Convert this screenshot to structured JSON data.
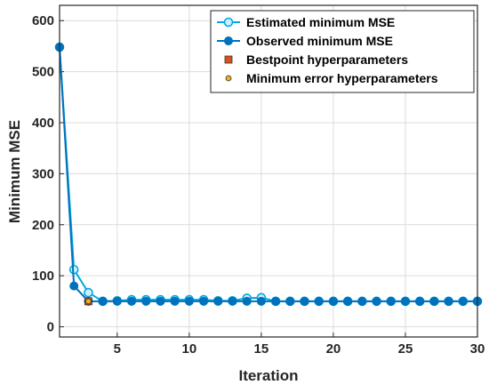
{
  "chart_data": {
    "type": "line",
    "xlabel": "Iteration",
    "ylabel": "Minimum MSE",
    "xlim": [
      1,
      30
    ],
    "ylim": [
      -20,
      630
    ],
    "x_ticks": [
      5,
      10,
      15,
      20,
      25,
      30
    ],
    "y_ticks": [
      0,
      100,
      200,
      300,
      400,
      500,
      600
    ],
    "grid": true,
    "legend_position": "top-right",
    "series": [
      {
        "name": "Estimated minimum MSE",
        "color": "#00A9E0",
        "marker": "open-circle",
        "x": [
          1,
          2,
          3,
          4,
          5,
          6,
          7,
          8,
          9,
          10,
          11,
          12,
          13,
          14,
          15,
          16,
          17,
          18,
          19,
          20,
          21,
          22,
          23,
          24,
          25,
          26,
          27,
          28,
          29,
          30
        ],
        "y": [
          548,
          112,
          67,
          50,
          51,
          53,
          53,
          53,
          53,
          53,
          53,
          51,
          51,
          56,
          57,
          50,
          50,
          50,
          50,
          50,
          50,
          50,
          50,
          50,
          50,
          50,
          50,
          50,
          50,
          50
        ]
      },
      {
        "name": "Observed minimum MSE",
        "color": "#0072BD",
        "marker": "filled-circle",
        "x": [
          1,
          2,
          3,
          4,
          5,
          6,
          7,
          8,
          9,
          10,
          11,
          12,
          13,
          14,
          15,
          16,
          17,
          18,
          19,
          20,
          21,
          22,
          23,
          24,
          25,
          26,
          27,
          28,
          29,
          30
        ],
        "y": [
          548,
          80,
          50,
          50,
          50,
          50,
          50,
          50,
          50,
          50,
          50,
          50,
          50,
          50,
          50,
          50,
          50,
          50,
          50,
          50,
          50,
          50,
          50,
          50,
          50,
          50,
          50,
          50,
          50,
          50
        ]
      },
      {
        "name": "Bestpoint hyperparameters",
        "color": "#D95319",
        "marker": "square",
        "x": [
          3
        ],
        "y": [
          50
        ]
      },
      {
        "name": "Minimum error hyperparameters",
        "color": "#EDB120",
        "marker": "small-circle",
        "x": [
          3
        ],
        "y": [
          50
        ]
      }
    ]
  }
}
